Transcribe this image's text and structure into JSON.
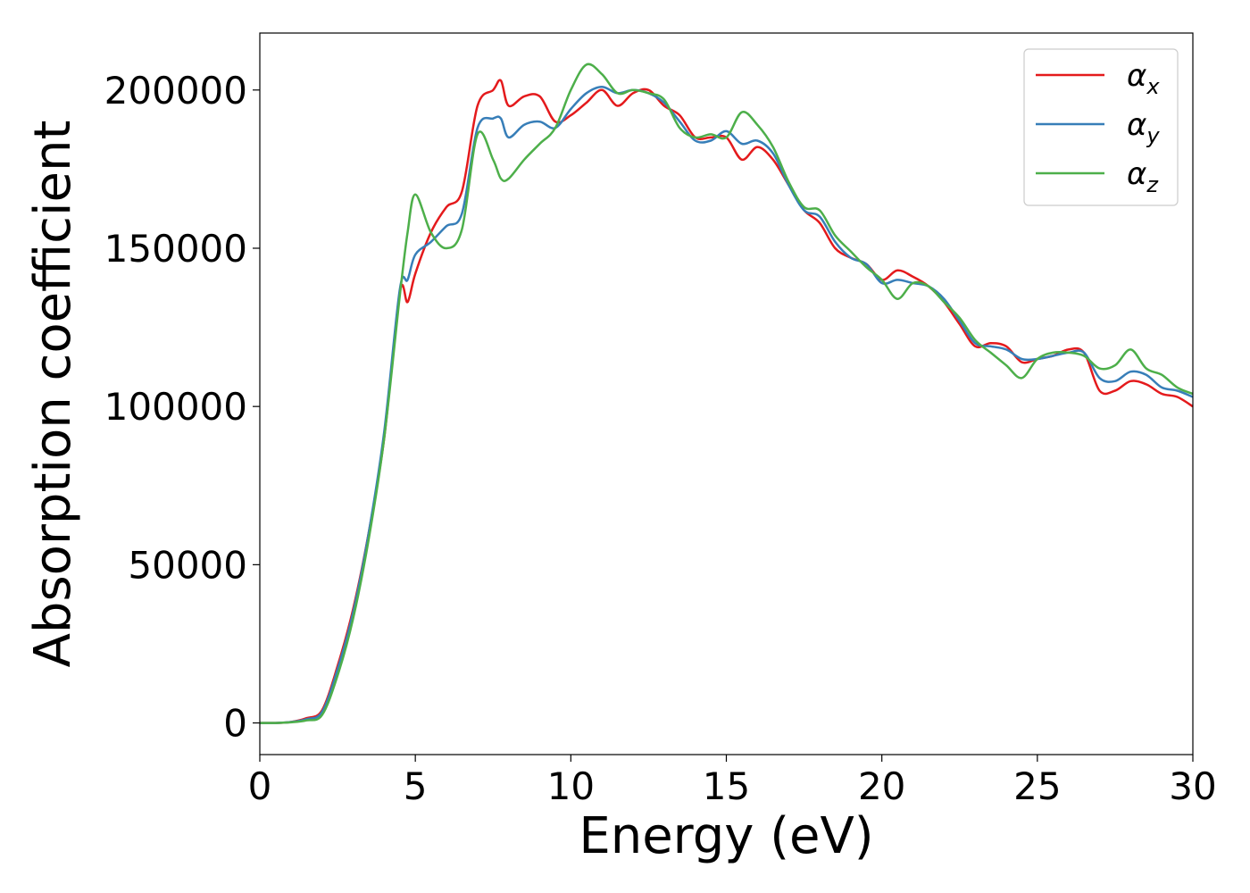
{
  "chart_data": {
    "type": "line",
    "title": "",
    "xlabel": "Energy (eV)",
    "ylabel": "Absorption coefficient",
    "xlim": [
      0,
      30
    ],
    "ylim": [
      -10000,
      218000
    ],
    "xticks": [
      0,
      5,
      10,
      15,
      20,
      25,
      30
    ],
    "yticks": [
      0,
      50000,
      100000,
      150000,
      200000
    ],
    "grid": false,
    "legend_position": "top-right",
    "x": [
      0,
      0.5,
      1,
      1.5,
      2,
      2.5,
      3,
      3.5,
      4,
      4.5,
      4.75,
      5,
      5.5,
      6,
      6.5,
      7,
      7.5,
      7.75,
      8,
      8.5,
      9,
      9.5,
      10,
      10.5,
      11,
      11.5,
      12,
      12.5,
      13,
      13.5,
      14,
      14.5,
      15,
      15.5,
      16,
      16.5,
      17,
      17.5,
      18,
      18.5,
      19,
      19.5,
      20,
      20.5,
      21,
      21.5,
      22,
      22.5,
      23,
      23.5,
      24,
      24.5,
      25,
      25.5,
      26,
      26.5,
      27,
      27.5,
      28,
      28.5,
      29,
      29.5,
      30
    ],
    "series": [
      {
        "name": "α_x",
        "name_base": "α",
        "name_sub": "x",
        "color": "#e41a1c",
        "values": [
          0,
          0,
          300,
          1500,
          4000,
          18000,
          36000,
          60000,
          90000,
          136000,
          133000,
          142000,
          155000,
          163000,
          168000,
          195000,
          200000,
          203000,
          195000,
          198000,
          198000,
          190000,
          192000,
          196000,
          200000,
          195000,
          199000,
          200000,
          195000,
          192000,
          185000,
          185000,
          185000,
          178000,
          182000,
          178000,
          170000,
          162000,
          158000,
          150000,
          147000,
          145000,
          140000,
          143000,
          141000,
          138000,
          133000,
          126000,
          119000,
          120000,
          119000,
          114000,
          115000,
          116000,
          118000,
          117000,
          105000,
          105000,
          108000,
          107000,
          104000,
          103000,
          100000
        ]
      },
      {
        "name": "α_y",
        "name_base": "α",
        "name_sub": "y",
        "color": "#377eb8",
        "values": [
          0,
          0,
          300,
          1200,
          3500,
          17000,
          35000,
          60000,
          92000,
          137000,
          140000,
          148000,
          152000,
          157000,
          161000,
          188000,
          191000,
          191000,
          185000,
          189000,
          190000,
          188000,
          194000,
          199000,
          201000,
          199000,
          200000,
          199000,
          196000,
          190000,
          184000,
          184000,
          187000,
          183000,
          184000,
          180000,
          170000,
          162000,
          160000,
          152000,
          147000,
          145000,
          139000,
          140000,
          139000,
          138000,
          134000,
          127000,
          120000,
          119000,
          118000,
          115000,
          115000,
          116000,
          117000,
          117000,
          109000,
          108000,
          111000,
          110000,
          106000,
          105000,
          103000
        ]
      },
      {
        "name": "α_z",
        "name_base": "α",
        "name_sub": "z",
        "color": "#4daf4a",
        "values": [
          0,
          0,
          200,
          800,
          2500,
          15000,
          33000,
          58000,
          90000,
          135000,
          155000,
          167000,
          155000,
          150000,
          156000,
          186000,
          178000,
          172000,
          172000,
          178000,
          183000,
          188000,
          200000,
          208000,
          205000,
          199000,
          200000,
          199000,
          197000,
          188000,
          185000,
          186000,
          185000,
          193000,
          189000,
          182000,
          171000,
          163000,
          162000,
          154000,
          149000,
          144000,
          140000,
          134000,
          139000,
          138000,
          133000,
          128000,
          121000,
          117000,
          113000,
          109000,
          115000,
          117000,
          117000,
          116000,
          112000,
          113000,
          118000,
          112000,
          110000,
          106000,
          104000
        ]
      }
    ]
  }
}
